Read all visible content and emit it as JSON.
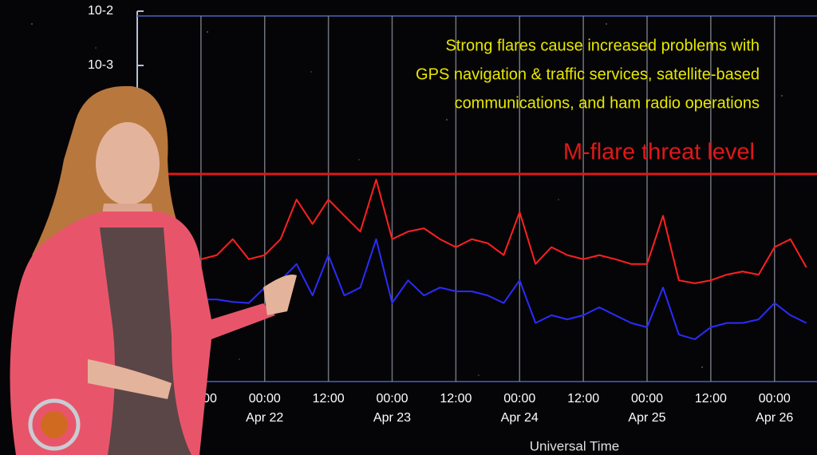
{
  "chart_data": {
    "type": "line",
    "log_y": true,
    "grid": true,
    "annotation_lines": [
      "Strong flares  cause increased problems with",
      "GPS navigation & traffic services, satellite-based",
      "communications, and ham radio operations"
    ],
    "threshold": {
      "text": "M-flare threat level",
      "value": 1e-05,
      "color": "#e01818"
    },
    "xlabel": "Universal Time",
    "xlim": [
      "Apr 21 00:00",
      "Apr 26 08:00"
    ],
    "xticks": [
      {
        "value": "Apr 21 12:00",
        "label": "12:00"
      },
      {
        "value": "Apr 22 00:00",
        "label": "00:00\nApr 22"
      },
      {
        "value": "Apr 22 12:00",
        "label": "12:00"
      },
      {
        "value": "Apr 23 00:00",
        "label": "00:00\nApr 23"
      },
      {
        "value": "Apr 23 12:00",
        "label": "12:00"
      },
      {
        "value": "Apr 24 00:00",
        "label": "00:00\nApr 24"
      },
      {
        "value": "Apr 24 12:00",
        "label": "12:00"
      },
      {
        "value": "Apr 25 00:00",
        "label": "00:00\nApr 25"
      },
      {
        "value": "Apr 25 12:00",
        "label": "12:00"
      },
      {
        "value": "Apr 26 00:00",
        "label": "00:00\nApr 26"
      }
    ],
    "ylim": [
      1e-09,
      0.01
    ],
    "yticks": [
      {
        "value": 0.01,
        "label": "10-2"
      },
      {
        "value": 0.001,
        "label": "10-3"
      }
    ],
    "x": [
      "Apr 21 12:00",
      "Apr 21 15:00",
      "Apr 21 18:00",
      "Apr 21 21:00",
      "Apr 22 00:00",
      "Apr 22 03:00",
      "Apr 22 06:00",
      "Apr 22 09:00",
      "Apr 22 12:00",
      "Apr 22 15:00",
      "Apr 22 18:00",
      "Apr 22 21:00",
      "Apr 23 00:00",
      "Apr 23 03:00",
      "Apr 23 06:00",
      "Apr 23 09:00",
      "Apr 23 12:00",
      "Apr 23 15:00",
      "Apr 23 18:00",
      "Apr 23 21:00",
      "Apr 24 00:00",
      "Apr 24 03:00",
      "Apr 24 06:00",
      "Apr 24 09:00",
      "Apr 24 12:00",
      "Apr 24 15:00",
      "Apr 24 18:00",
      "Apr 24 21:00",
      "Apr 25 00:00",
      "Apr 25 03:00",
      "Apr 25 06:00",
      "Apr 25 09:00",
      "Apr 25 12:00",
      "Apr 25 15:00",
      "Apr 25 18:00",
      "Apr 25 21:00",
      "Apr 26 00:00",
      "Apr 26 03:00",
      "Apr 26 06:00"
    ],
    "series": [
      {
        "color": "#ff2020",
        "values": [
          2.7e-07,
          3.2e-07,
          6.3e-07,
          2.7e-07,
          3.2e-07,
          6.3e-07,
          3.4e-06,
          1.2e-06,
          3.4e-06,
          1.7e-06,
          8.7e-07,
          7.9e-06,
          6.3e-07,
          8.7e-07,
          1e-06,
          6.3e-07,
          4.5e-07,
          6.3e-07,
          5.3e-07,
          3.2e-07,
          2e-06,
          2.2e-07,
          4.5e-07,
          3.2e-07,
          2.7e-07,
          3.2e-07,
          2.7e-07,
          2.2e-07,
          2.2e-07,
          1.7e-06,
          1.1e-07,
          9.7e-08,
          1.1e-07,
          1.4e-07,
          1.6e-07,
          1.4e-07,
          4.5e-07,
          6.3e-07,
          1.9e-07
        ]
      },
      {
        "color": "#2b2bff",
        "values": [
          4.9e-08,
          4.9e-08,
          4.4e-08,
          4.2e-08,
          8.1e-08,
          1.1e-07,
          2.2e-07,
          5.8e-08,
          3.2e-07,
          5.8e-08,
          8.1e-08,
          6.3e-07,
          4.2e-08,
          1.1e-07,
          5.8e-08,
          8.1e-08,
          6.9e-08,
          6.9e-08,
          5.8e-08,
          4.2e-08,
          1.1e-07,
          1.8e-08,
          2.5e-08,
          2.1e-08,
          2.5e-08,
          3.5e-08,
          2.5e-08,
          1.8e-08,
          1.5e-08,
          8.1e-08,
          1.1e-08,
          9e-09,
          1.5e-08,
          1.8e-08,
          1.8e-08,
          2.1e-08,
          4.2e-08,
          2.5e-08,
          1.8e-08
        ]
      }
    ]
  }
}
